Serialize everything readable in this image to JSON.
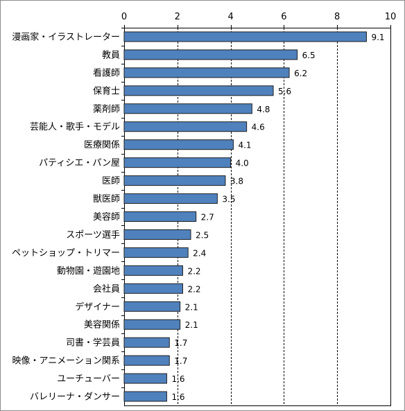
{
  "chart_data": {
    "type": "bar",
    "orientation": "horizontal",
    "xlim": [
      0,
      10
    ],
    "x_ticks": [
      0,
      2,
      4,
      6,
      8,
      10
    ],
    "grid": "vertical-dashed",
    "bar_color": "#4f81bd",
    "bar_edge_color": "#1f1f1f",
    "categories": [
      "漫画家・イラストレーター",
      "教員",
      "看護師",
      "保育士",
      "薬剤師",
      "芸能人・歌手・モデル",
      "医療関係",
      "パティシエ・パン屋",
      "医師",
      "獣医師",
      "美容師",
      "スポーツ選手",
      "ペットショップ・トリマー",
      "動物園・遊園地",
      "会社員",
      "デザイナー",
      "美容関係",
      "司書・学芸員",
      "映像・アニメーション関系",
      "ユーチューバー",
      "バレリーナ・ダンサー"
    ],
    "values": [
      9.1,
      6.5,
      6.2,
      5.6,
      4.8,
      4.6,
      4.1,
      4.0,
      3.8,
      3.5,
      2.7,
      2.5,
      2.4,
      2.2,
      2.2,
      2.1,
      2.1,
      1.7,
      1.7,
      1.6,
      1.6
    ],
    "value_labels": [
      "9.1",
      "6.5",
      "6.2",
      "5.6",
      "4.8",
      "4.6",
      "4.1",
      "4.0",
      "3.8",
      "3.5",
      "2.7",
      "2.5",
      "2.4",
      "2.2",
      "2.2",
      "2.1",
      "2.1",
      "1.7",
      "1.7",
      "1.6",
      "1.6"
    ]
  }
}
